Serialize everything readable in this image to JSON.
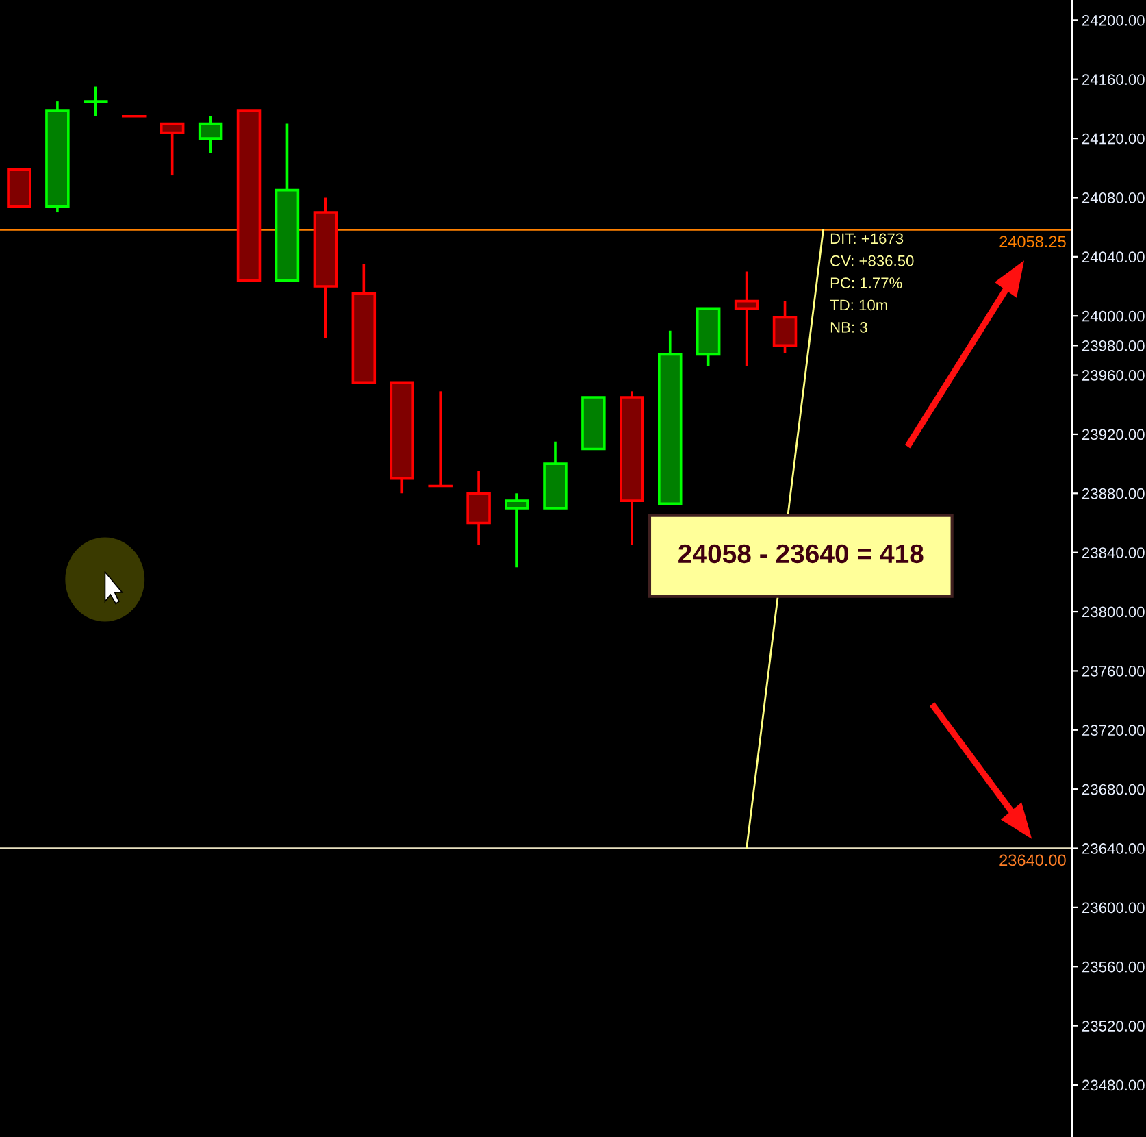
{
  "chart_data": {
    "type": "candlestick",
    "categories": [
      null,
      null,
      null,
      null,
      null,
      null,
      null,
      null,
      null,
      null,
      null,
      null,
      null,
      null,
      null,
      null,
      null,
      null,
      null,
      null,
      null,
      null,
      null,
      null,
      null,
      null,
      null,
      null
    ],
    "ylim": [
      23444.8,
      24213.6
    ],
    "tick_labels": "y",
    "yticks": [
      {
        "value": 24200,
        "label": "24200.00"
      },
      {
        "value": 24160,
        "label": "24160.00"
      },
      {
        "value": 24120,
        "label": "24120.00"
      },
      {
        "value": 24080,
        "label": "24080.00"
      },
      {
        "value": 24040,
        "label": "24040.00"
      },
      {
        "value": 24000,
        "label": "24000.00"
      },
      {
        "value": 23980,
        "label": "23980.00"
      },
      {
        "value": 23960,
        "label": "23960.00"
      },
      {
        "value": 23920,
        "label": "23920.00"
      },
      {
        "value": 23880,
        "label": "23880.00"
      },
      {
        "value": 23840,
        "label": "23840.00"
      },
      {
        "value": 23800,
        "label": "23800.00"
      },
      {
        "value": 23760,
        "label": "23760.00"
      },
      {
        "value": 23720,
        "label": "23720.00"
      },
      {
        "value": 23680,
        "label": "23680.00"
      },
      {
        "value": 23640,
        "label": "23640.00"
      },
      {
        "value": 23600,
        "label": "23600.00"
      },
      {
        "value": 23560,
        "label": "23560.00"
      },
      {
        "value": 23520,
        "label": "23520.00"
      },
      {
        "value": 23480,
        "label": "23480.00"
      }
    ],
    "grid": false,
    "series": [
      {
        "type": "candlestick",
        "ohlc": [
          [
            24099,
            24099,
            24074,
            24074
          ],
          [
            24074,
            24145,
            24070,
            24139
          ],
          [
            24145,
            24155,
            24135,
            24145
          ],
          [
            24135,
            24135,
            24135,
            24135
          ],
          [
            24130,
            24130,
            24095,
            24124
          ],
          [
            24120,
            24135,
            24110,
            24130
          ],
          [
            24139,
            24139,
            24024,
            24024
          ],
          [
            24024,
            24130,
            24024,
            24085
          ],
          [
            24070,
            24080,
            23985,
            24020
          ],
          [
            24015,
            24035,
            23955,
            23955
          ],
          [
            23955,
            23955,
            23880,
            23890
          ],
          [
            23885,
            23949,
            23885,
            23885
          ],
          [
            23880,
            23895,
            23845,
            23860
          ],
          [
            23870,
            23880,
            23830,
            23875
          ],
          [
            23870,
            23915,
            23870,
            23900
          ],
          [
            23910,
            23945,
            23910,
            23945
          ],
          [
            23945,
            23949,
            23845,
            23875
          ],
          [
            23873,
            23990,
            23873,
            23974
          ],
          [
            23974,
            24005,
            23966,
            24005
          ],
          [
            24010,
            24030,
            23966,
            24005
          ],
          [
            23999,
            24010,
            23975,
            23980
          ],
          null,
          null,
          null,
          null,
          null,
          null,
          null
        ],
        "colors": [
          "#ff0000",
          "#00ff00",
          "#00ff00",
          "#ff0000",
          "#ff0000",
          "#00ff00",
          "#ff0000",
          "#00ff00",
          "#ff0000",
          "#ff0000",
          "#ff0000",
          "#ff0000",
          "#ff0000",
          "#00ff00",
          "#00ff00",
          "#00ff00",
          "#ff0000",
          "#00ff00",
          "#00ff00",
          "#ff0000",
          "#ff0000",
          null,
          null,
          null,
          null,
          null,
          null,
          null
        ]
      },
      {
        "type": "line",
        "values": [
          null,
          null,
          null,
          null,
          null,
          null,
          null,
          null,
          null,
          null,
          null,
          null,
          null,
          null,
          null,
          null,
          null,
          null,
          null,
          23640,
          null,
          24058,
          null,
          null,
          null,
          null,
          null,
          null
        ],
        "color": "#ffff80"
      }
    ],
    "ref_lines": [
      {
        "axis": "y",
        "value": 24058.25,
        "label": "24058.25",
        "color": "#ff8000"
      },
      {
        "axis": "y",
        "value": 23640,
        "label": "23640.00",
        "color": "#e8e0c0"
      }
    ],
    "annotations": [
      "DIT: +1673",
      "CV: +836.50",
      "PC: 1.77%",
      "TD: 10m",
      "NB: 3",
      "24058 - 23640 = 418"
    ]
  }
}
